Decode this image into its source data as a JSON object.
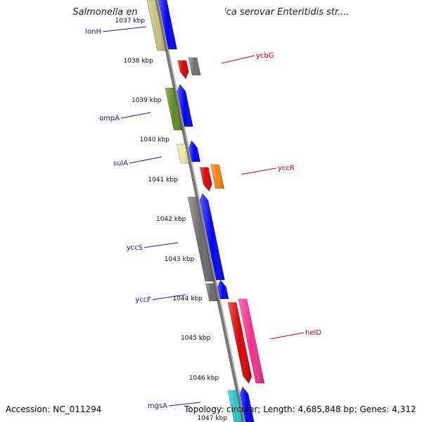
{
  "title": "Salmonella enterica subsp. enterica serovar Enteritidis str....",
  "accession": "Accession: NC_011294",
  "stats": "Topology: circular; Length: 4,685,848 bp; Genes: 4,312",
  "ruler": {
    "ticks": [
      "1037 kbp",
      "1038 kbp",
      "1039 kbp",
      "1040 kbp",
      "1041 kbp",
      "1042 kbp",
      "1043 kbp",
      "1044 kbp",
      "1045 kbp",
      "1046 kbp",
      "1047 kbp"
    ]
  },
  "genes_forward": [
    {
      "name": "lonH",
      "color": "#c8c07a"
    },
    {
      "name": "ompA",
      "color": "#5f8a1f"
    },
    {
      "name": "sulA",
      "color": "#f0e6a0"
    },
    {
      "name": "yccS",
      "color": "#6b6b6b"
    },
    {
      "name": "yccF",
      "color": "#6b6b6b"
    },
    {
      "name": "mgsA",
      "color": "#20c8c8"
    }
  ],
  "genes_reverse": [
    {
      "name": "ycbG",
      "color": "#e00000"
    },
    {
      "name": "yccR",
      "color": "#e00000"
    },
    {
      "name": "helD",
      "color": "#e00000"
    }
  ],
  "colors": {
    "cds_forward": "#0000ff",
    "cds_reverse_pink": "#ff2c8c",
    "cds_reverse_orange": "#ff8000",
    "backbone": "#888888",
    "tick_green": "#1a8a1a"
  }
}
